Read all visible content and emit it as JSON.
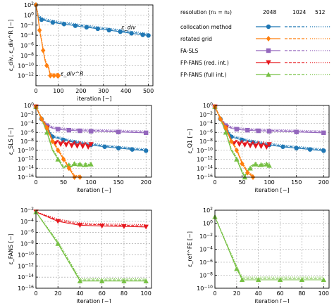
{
  "chart_data": [
    {
      "id": "p1",
      "type": "line",
      "yscale": "log",
      "xlim": [
        0,
        520
      ],
      "ylim": [
        1e-14,
        100
      ],
      "xticks": [
        0,
        100,
        200,
        300,
        400,
        500
      ],
      "yticks": [
        1e-12,
        1e-10,
        1e-08,
        1e-06,
        0.0001,
        0.01,
        1,
        100
      ],
      "xlabel": "iteration [−]",
      "ylabel": "ε_div, ε_div^R [−]",
      "grid": true,
      "annotations": [
        {
          "text": "ε_div",
          "x": 380,
          "y": 0.0015
        },
        {
          "text": "ε_div^R",
          "x": 110,
          "y": 1e-12
        }
      ],
      "series": [
        {
          "method": "collocation",
          "x": [
            0,
            10,
            25,
            50,
            75,
            100,
            125,
            150,
            175,
            200,
            225,
            250,
            275,
            300,
            325,
            350,
            375,
            400,
            425,
            450,
            475,
            500
          ],
          "y": [
            100,
            0.5,
            0.12,
            0.06,
            0.035,
            0.022,
            0.016,
            0.011,
            0.0075,
            0.0052,
            0.0038,
            0.0027,
            0.0019,
            0.0014,
            0.001,
            0.0007,
            0.0005,
            0.00034,
            0.00024,
            0.00017,
            0.00012,
            9e-05
          ]
        },
        {
          "method": "rotated",
          "x": [
            0,
            8,
            16,
            24,
            32,
            40,
            48,
            56,
            64,
            72,
            80,
            88,
            96,
            100
          ],
          "y": [
            100,
            1,
            0.001,
            1e-05,
            1e-07,
            1e-09,
            1e-10,
            3e-11,
            1e-12,
            1e-12,
            1e-12,
            1e-12,
            1e-12,
            1e-12
          ]
        }
      ]
    },
    {
      "id": "p2",
      "type": "line",
      "yscale": "log",
      "xlim": [
        0,
        210
      ],
      "ylim": [
        1e-16,
        1
      ],
      "xticks": [
        0,
        50,
        100,
        150,
        200
      ],
      "yticks": [
        1e-16,
        1e-14,
        1e-12,
        1e-10,
        1e-08,
        1e-06,
        0.0001,
        0.01,
        1
      ],
      "xlabel": "iteration [−]",
      "ylabel": "ε_SLS [−]",
      "grid": true,
      "series": [
        {
          "method": "fasls",
          "x": [
            0,
            10,
            20,
            30,
            40,
            50,
            60,
            70,
            80,
            90,
            100,
            125,
            150,
            175,
            200
          ],
          "y": [
            0.5,
            0.001,
            3e-05,
            8e-06,
            5e-06,
            3.5e-06,
            3e-06,
            2.5e-06,
            2.2e-06,
            2e-06,
            1.8e-06,
            1.5e-06,
            1.2e-06,
            1e-06,
            8e-07
          ]
        },
        {
          "method": "collocation",
          "x": [
            0,
            10,
            20,
            30,
            50,
            70,
            100,
            125,
            150,
            175,
            200
          ],
          "y": [
            0.5,
            0.001,
            1e-05,
            1e-07,
            2e-08,
            6e-09,
            1.5e-09,
            6e-10,
            3e-10,
            1.5e-10,
            8e-11
          ]
        },
        {
          "method": "ffred",
          "x": [
            0,
            10,
            20,
            30,
            35,
            40,
            45,
            50,
            55,
            60,
            65,
            70,
            75,
            80,
            85,
            90,
            95,
            100
          ],
          "y": [
            0.5,
            0.001,
            1e-05,
            1e-08,
            3e-09,
            1e-08,
            2e-09,
            8e-09,
            1.5e-09,
            6e-09,
            1e-09,
            5e-09,
            8e-10,
            4e-09,
            7e-10,
            3e-09,
            5e-10,
            2e-09
          ]
        },
        {
          "method": "fffull",
          "x": [
            0,
            10,
            20,
            30,
            40,
            50,
            60,
            65,
            70,
            75,
            80,
            85,
            90,
            95,
            100
          ],
          "y": [
            0.5,
            0.001,
            1e-06,
            1e-10,
            1e-12,
            1e-14,
            5e-14,
            2e-14,
            1e-13,
            3e-14,
            8e-14,
            2e-14,
            6e-14,
            3e-14,
            8e-14
          ]
        },
        {
          "method": "rotated",
          "x": [
            0,
            10,
            20,
            30,
            40,
            50,
            60,
            70,
            80
          ],
          "y": [
            0.5,
            0.001,
            1e-05,
            1e-08,
            1e-10,
            1e-12,
            1e-14,
            1e-16,
            1e-16
          ]
        }
      ]
    },
    {
      "id": "p3",
      "type": "line",
      "yscale": "log",
      "xlim": [
        0,
        210
      ],
      "ylim": [
        1e-16,
        1
      ],
      "xticks": [
        0,
        50,
        100,
        150,
        200
      ],
      "yticks": [
        1e-16,
        1e-14,
        1e-12,
        1e-10,
        1e-08,
        1e-06,
        0.0001,
        0.01,
        1
      ],
      "xlabel": "iteration [−]",
      "ylabel": "ε_Q1 [−]",
      "grid": true,
      "series": [
        {
          "method": "fasls",
          "x": [
            0,
            10,
            20,
            30,
            40,
            50,
            60,
            70,
            80,
            90,
            100,
            125,
            150,
            175,
            200
          ],
          "y": [
            0.5,
            0.001,
            3e-05,
            8e-06,
            5e-06,
            3.5e-06,
            3e-06,
            2.5e-06,
            2.2e-06,
            2e-06,
            1.8e-06,
            1.5e-06,
            1.2e-06,
            1e-06,
            8e-07
          ]
        },
        {
          "method": "collocation",
          "x": [
            0,
            10,
            20,
            30,
            50,
            70,
            100,
            125,
            150,
            175,
            200
          ],
          "y": [
            0.5,
            0.001,
            1e-05,
            1e-07,
            2e-08,
            6e-09,
            1.5e-09,
            6e-10,
            3e-10,
            1.5e-10,
            8e-11
          ]
        },
        {
          "method": "ffred",
          "x": [
            0,
            10,
            20,
            30,
            35,
            40,
            45,
            50,
            55,
            60,
            65,
            70,
            75,
            80,
            85,
            90,
            95,
            100
          ],
          "y": [
            0.5,
            0.001,
            1e-05,
            1e-08,
            3e-09,
            1e-08,
            2e-09,
            8e-09,
            1.5e-09,
            6e-09,
            1e-09,
            5e-09,
            8e-10,
            4e-09,
            7e-10,
            3e-09,
            5e-10,
            2e-09
          ]
        },
        {
          "method": "fffull",
          "x": [
            0,
            10,
            20,
            30,
            40,
            50,
            55,
            60,
            65,
            70,
            75,
            80,
            85,
            90,
            95,
            100
          ],
          "y": [
            0.5,
            0.001,
            1e-06,
            1e-10,
            1e-12,
            1e-15,
            1e-16,
            2e-15,
            1e-14,
            3e-14,
            8e-14,
            2e-14,
            6e-14,
            3e-14,
            8e-14,
            4e-14
          ]
        },
        {
          "method": "rotated",
          "x": [
            0,
            10,
            20,
            30,
            40,
            50,
            60,
            70
          ],
          "y": [
            0.5,
            0.001,
            1e-05,
            1e-08,
            1e-10,
            1e-13,
            1e-15,
            1e-16
          ]
        }
      ]
    },
    {
      "id": "p4",
      "type": "line",
      "yscale": "log",
      "xlim": [
        0,
        105
      ],
      "ylim": [
        1e-16,
        0.01
      ],
      "xticks": [
        0,
        20,
        40,
        60,
        80,
        100
      ],
      "yticks": [
        1e-16,
        1e-14,
        1e-12,
        1e-10,
        1e-08,
        1e-06,
        0.0001,
        0.01
      ],
      "xlabel": "iteration [−]",
      "ylabel": "ε_FANS [−]",
      "grid": true,
      "series": [
        {
          "method": "ffred",
          "x": [
            0,
            20,
            40,
            60,
            80,
            100
          ],
          "y": [
            0.005,
            0.0001,
            2e-05,
            1.5e-05,
            1.2e-05,
            1e-05
          ]
        },
        {
          "method": "fffull",
          "x": [
            0,
            20,
            40,
            60,
            80,
            100
          ],
          "y": [
            0.005,
            1e-08,
            2e-15,
            2e-15,
            2e-15,
            2e-15
          ]
        }
      ]
    },
    {
      "id": "p5",
      "type": "line",
      "yscale": "log",
      "xlim": [
        0,
        105
      ],
      "ylim": [
        1e-10,
        100
      ],
      "xticks": [
        0,
        20,
        40,
        60,
        80,
        100
      ],
      "yticks": [
        1e-10,
        1e-08,
        1e-06,
        0.0001,
        0.01,
        1,
        100
      ],
      "xlabel": "iteration [−]",
      "ylabel": "ε_ref^FE [−]",
      "grid": true,
      "series": [
        {
          "method": "fffull",
          "x": [
            0,
            20,
            25,
            40,
            60,
            80,
            100
          ],
          "y": [
            10,
            1e-07,
            2e-09,
            2e-09,
            2e-09,
            2e-09,
            2e-09
          ]
        }
      ]
    }
  ],
  "legend": {
    "header": "resolution (n₁ = n₂)",
    "resolutions": [
      "2048",
      "1024",
      "512"
    ],
    "entries": [
      {
        "key": "collocation",
        "label": "collocation method",
        "color": "#1f77b4",
        "marker": "circle"
      },
      {
        "key": "rotated",
        "label": "rotated grid",
        "color": "#ff7f0e",
        "marker": "diamond"
      },
      {
        "key": "fasls",
        "label": "FA-SLS",
        "color": "#9467bd",
        "marker": "square"
      },
      {
        "key": "ffred",
        "label": "FP-FANS (red. int.)",
        "color": "#e6171d",
        "marker": "triangle-down"
      },
      {
        "key": "fffull",
        "label": "FP-FANS (full int.)",
        "color": "#76c043",
        "marker": "triangle-up"
      }
    ]
  }
}
